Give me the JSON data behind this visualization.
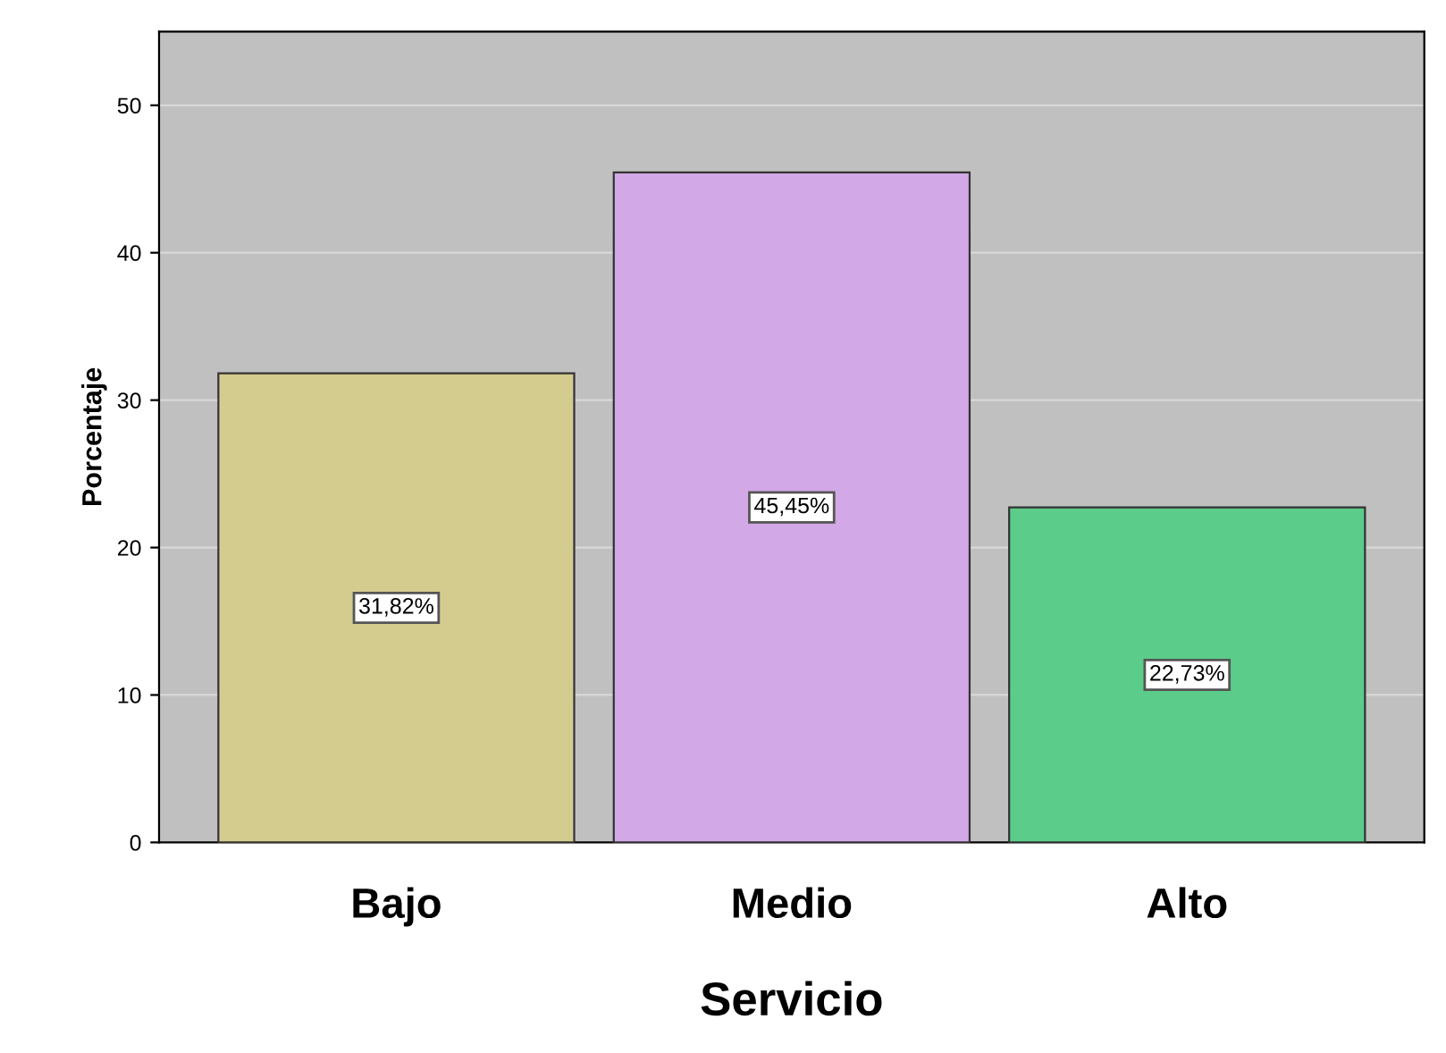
{
  "chart_data": {
    "type": "bar",
    "xlabel": "Servicio",
    "ylabel": "Porcentaje",
    "categories": [
      "Bajo",
      "Medio",
      "Alto"
    ],
    "values": [
      31.82,
      45.45,
      22.73
    ],
    "colors": [
      "#d4cc8f",
      "#d3a8e6",
      "#5ccc8a"
    ],
    "value_labels": [
      "31,82%",
      "45,45%",
      "22,73%"
    ],
    "ylim": [
      0,
      55
    ],
    "yticks": [
      0,
      10,
      20,
      30,
      40,
      50
    ],
    "grid": "y"
  }
}
